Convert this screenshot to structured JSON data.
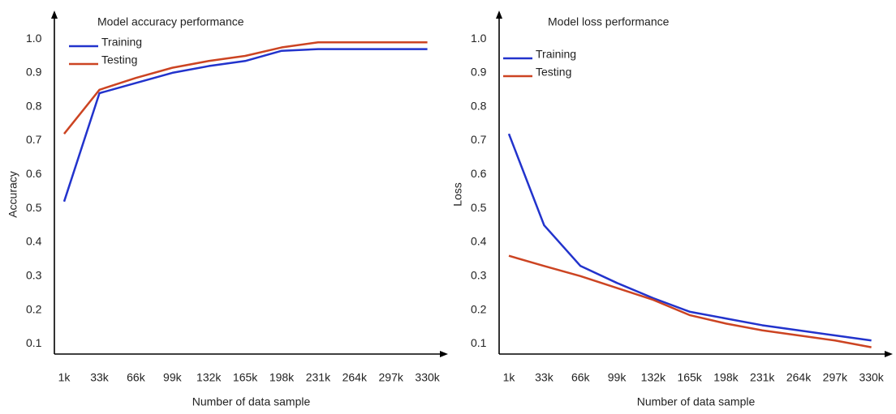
{
  "chart_data": [
    {
      "type": "line",
      "title": "Model accuracy performance",
      "x_label": "Number of data sample",
      "y_label": "Accuracy",
      "x": [
        1000,
        33000,
        66000,
        99000,
        132000,
        165000,
        198000,
        231000,
        264000,
        297000,
        330000
      ],
      "series": [
        {
          "name": "Training",
          "color": "#2233cc",
          "values": [
            0.52,
            0.84,
            0.87,
            0.9,
            0.92,
            0.935,
            0.965,
            0.97,
            0.97,
            0.97,
            0.97
          ]
        },
        {
          "name": "Testing",
          "color": "#cc4422",
          "values": [
            0.72,
            0.85,
            0.885,
            0.915,
            0.935,
            0.95,
            0.975,
            0.99,
            0.99,
            0.99,
            0.99
          ]
        }
      ],
      "xlim": [
        1000,
        345000
      ],
      "ylim": [
        0.07,
        1.06
      ],
      "xticks": [
        {
          "value": 1000,
          "label": "1k"
        },
        {
          "value": 33000,
          "label": "33k"
        },
        {
          "value": 66000,
          "label": "66k"
        },
        {
          "value": 99000,
          "label": "99k"
        },
        {
          "value": 132000,
          "label": "132k"
        },
        {
          "value": 165000,
          "label": "165k"
        },
        {
          "value": 198000,
          "label": "198k"
        },
        {
          "value": 231000,
          "label": "231k"
        },
        {
          "value": 264000,
          "label": "264k"
        },
        {
          "value": 297000,
          "label": "297k"
        },
        {
          "value": 330000,
          "label": "330k"
        }
      ],
      "yticks": [
        0.1,
        0.2,
        0.3,
        0.4,
        0.5,
        0.6,
        0.7,
        0.8,
        0.9,
        {
          "value": 1,
          "label": "1.0"
        }
      ],
      "legend": "upper left",
      "grid": false
    },
    {
      "type": "line",
      "title": "Model loss performance",
      "x_label": "Number of data sample",
      "y_label": "Loss",
      "x": [
        1000,
        33000,
        66000,
        99000,
        132000,
        165000,
        198000,
        231000,
        264000,
        297000,
        330000
      ],
      "series": [
        {
          "name": "Training",
          "color": "#2233cc",
          "values": [
            0.72,
            0.45,
            0.33,
            0.28,
            0.235,
            0.195,
            0.175,
            0.155,
            0.14,
            0.125,
            0.11
          ]
        },
        {
          "name": "Testing",
          "color": "#cc4422",
          "values": [
            0.36,
            0.33,
            0.3,
            0.265,
            0.23,
            0.185,
            0.16,
            0.14,
            0.125,
            0.11,
            0.09
          ]
        }
      ],
      "xlim": [
        1000,
        345000
      ],
      "ylim": [
        0.07,
        1.06
      ],
      "xticks": [
        {
          "value": 1000,
          "label": "1k"
        },
        {
          "value": 33000,
          "label": "33k"
        },
        {
          "value": 66000,
          "label": "66k"
        },
        {
          "value": 99000,
          "label": "99k"
        },
        {
          "value": 132000,
          "label": "132k"
        },
        {
          "value": 165000,
          "label": "165k"
        },
        {
          "value": 198000,
          "label": "198k"
        },
        {
          "value": 231000,
          "label": "231k"
        },
        {
          "value": 264000,
          "label": "264k"
        },
        {
          "value": 297000,
          "label": "297k"
        },
        {
          "value": 330000,
          "label": "330k"
        }
      ],
      "yticks": [
        0.1,
        0.2,
        0.3,
        0.4,
        0.5,
        0.6,
        0.7,
        0.8,
        0.9,
        {
          "value": 1,
          "label": "1.0"
        }
      ],
      "legend": "upper left",
      "grid": false
    }
  ]
}
